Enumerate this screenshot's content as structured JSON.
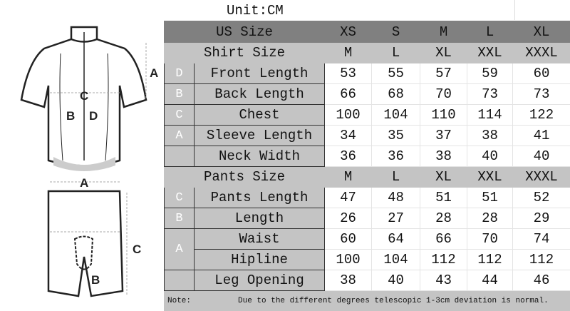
{
  "unit_label": "Unit:CM",
  "illustration": {
    "shirt_labels": [
      "A",
      "B",
      "C",
      "D"
    ],
    "pants_labels": [
      "A",
      "B",
      "C"
    ]
  },
  "header": {
    "label": "US Size",
    "sizes": [
      "XS",
      "S",
      "M",
      "L",
      "XL"
    ]
  },
  "shirt": {
    "label": "Shirt Size",
    "sizes": [
      "M",
      "L",
      "XL",
      "XXL",
      "XXXL"
    ],
    "rows": [
      {
        "letter": "D",
        "label": "Front Length",
        "values": [
          "53",
          "55",
          "57",
          "59",
          "60"
        ]
      },
      {
        "letter": "B",
        "label": "Back Length",
        "values": [
          "66",
          "68",
          "70",
          "73",
          "73"
        ]
      },
      {
        "letter": "C",
        "label": "Chest",
        "values": [
          "100",
          "104",
          "110",
          "114",
          "122"
        ]
      },
      {
        "letter": "A",
        "label": "Sleeve Length",
        "values": [
          "34",
          "35",
          "37",
          "38",
          "41"
        ]
      },
      {
        "letter": "",
        "label": "Neck Width",
        "values": [
          "36",
          "36",
          "38",
          "40",
          "40"
        ]
      }
    ]
  },
  "pants": {
    "label": "Pants Size",
    "sizes": [
      "M",
      "L",
      "XL",
      "XXL",
      "XXXL"
    ],
    "rows": [
      {
        "letter": "C",
        "label": "Pants Length",
        "values": [
          "47",
          "48",
          "51",
          "51",
          "52"
        ]
      },
      {
        "letter": "B",
        "label": "Length",
        "values": [
          "26",
          "27",
          "28",
          "28",
          "29"
        ]
      },
      {
        "letter": "A",
        "label": "Waist",
        "values": [
          "60",
          "64",
          "66",
          "70",
          "74"
        ]
      },
      {
        "letter": "",
        "label": "Hipline",
        "values": [
          "100",
          "104",
          "112",
          "112",
          "112"
        ]
      },
      {
        "letter": "",
        "label": "Leg Opening",
        "values": [
          "38",
          "40",
          "43",
          "44",
          "46"
        ]
      }
    ]
  },
  "note": {
    "label": "Note:",
    "text": "Due to the different degrees telescopic 1-3cm deviation is normal."
  }
}
